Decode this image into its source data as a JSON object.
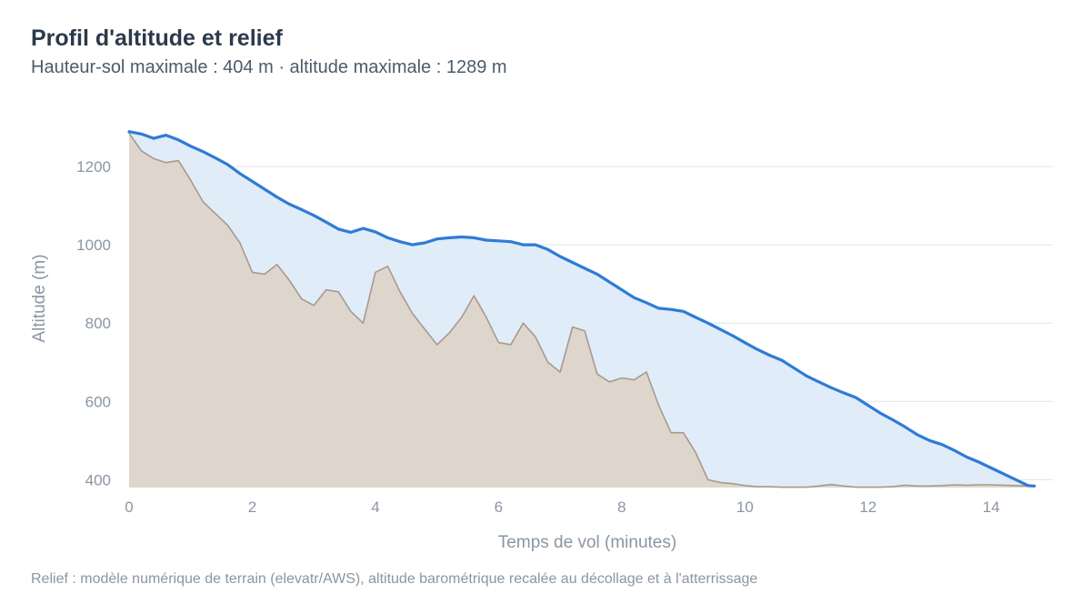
{
  "chart_data": {
    "type": "area",
    "title": "Profil d'altitude et relief",
    "subtitle": "Hauteur-sol maximale : 404 m · altitude maximale : 1289 m",
    "caption": "Relief : modèle numérique de terrain (elevatr/AWS), altitude barométrique recalée au décollage et à l'atterrissage",
    "xlabel": "Temps de vol (minutes)",
    "ylabel": "Altitude (m)",
    "xlim": [
      0,
      15
    ],
    "ylim": [
      380,
      1300
    ],
    "x_ticks": [
      0,
      2,
      4,
      6,
      8,
      10,
      12,
      14
    ],
    "y_ticks": [
      400,
      600,
      800,
      1000,
      1200
    ],
    "grid": "horizontal",
    "legend": "none",
    "series": [
      {
        "role": "flight_altitude",
        "color": "#2f7bd6",
        "fill": "#e1ecf9",
        "x": [
          0,
          0.2,
          0.4,
          0.6,
          0.8,
          1.0,
          1.2,
          1.4,
          1.6,
          1.8,
          2.0,
          2.2,
          2.4,
          2.6,
          2.8,
          3.0,
          3.2,
          3.4,
          3.6,
          3.8,
          4.0,
          4.2,
          4.4,
          4.6,
          4.8,
          5.0,
          5.2,
          5.4,
          5.6,
          5.8,
          6.0,
          6.2,
          6.4,
          6.6,
          6.8,
          7.0,
          7.2,
          7.4,
          7.6,
          7.8,
          8.0,
          8.2,
          8.4,
          8.6,
          8.8,
          9.0,
          9.2,
          9.4,
          9.6,
          9.8,
          10.0,
          10.2,
          10.4,
          10.6,
          10.8,
          11.0,
          11.2,
          11.4,
          11.6,
          11.8,
          12.0,
          12.2,
          12.4,
          12.6,
          12.8,
          13.0,
          13.2,
          13.4,
          13.6,
          13.8,
          14.0,
          14.2,
          14.4,
          14.6,
          14.7
        ],
        "y": [
          1289,
          1283,
          1272,
          1280,
          1268,
          1252,
          1238,
          1222,
          1205,
          1182,
          1162,
          1142,
          1122,
          1104,
          1090,
          1075,
          1058,
          1040,
          1032,
          1042,
          1033,
          1018,
          1008,
          1000,
          1005,
          1015,
          1018,
          1020,
          1018,
          1012,
          1010,
          1008,
          1000,
          1000,
          988,
          970,
          955,
          940,
          925,
          905,
          885,
          865,
          852,
          838,
          835,
          830,
          815,
          800,
          784,
          768,
          750,
          733,
          718,
          705,
          685,
          665,
          650,
          635,
          622,
          610,
          590,
          570,
          553,
          535,
          515,
          500,
          490,
          475,
          458,
          445,
          430,
          415,
          400,
          385,
          384
        ]
      },
      {
        "role": "terrain",
        "color": "#a69a8d",
        "fill": "#ded6cc",
        "x": [
          0,
          0.2,
          0.4,
          0.6,
          0.8,
          1.0,
          1.2,
          1.4,
          1.6,
          1.8,
          2.0,
          2.2,
          2.4,
          2.6,
          2.8,
          3.0,
          3.2,
          3.4,
          3.6,
          3.8,
          4.0,
          4.2,
          4.4,
          4.6,
          4.8,
          5.0,
          5.2,
          5.4,
          5.6,
          5.8,
          6.0,
          6.2,
          6.4,
          6.6,
          6.8,
          7.0,
          7.2,
          7.4,
          7.6,
          7.8,
          8.0,
          8.2,
          8.4,
          8.6,
          8.8,
          9.0,
          9.2,
          9.4,
          9.6,
          9.8,
          10.0,
          10.2,
          10.4,
          10.6,
          10.8,
          11.0,
          11.2,
          11.4,
          11.6,
          11.8,
          12.0,
          12.2,
          12.4,
          12.6,
          12.8,
          13.0,
          13.2,
          13.4,
          13.6,
          13.8,
          14.0,
          14.2,
          14.4,
          14.6,
          14.7
        ],
        "y": [
          1285,
          1240,
          1220,
          1210,
          1215,
          1165,
          1110,
          1080,
          1050,
          1005,
          930,
          925,
          950,
          910,
          862,
          845,
          885,
          880,
          830,
          800,
          930,
          945,
          880,
          825,
          785,
          745,
          775,
          815,
          870,
          815,
          750,
          745,
          800,
          765,
          700,
          675,
          790,
          780,
          670,
          650,
          660,
          655,
          675,
          590,
          520,
          520,
          470,
          400,
          393,
          390,
          385,
          382,
          382,
          381,
          381,
          381,
          384,
          388,
          384,
          381,
          381,
          381,
          382,
          386,
          384,
          384,
          385,
          387,
          386,
          387,
          387,
          386,
          385,
          384,
          384
        ]
      }
    ]
  }
}
